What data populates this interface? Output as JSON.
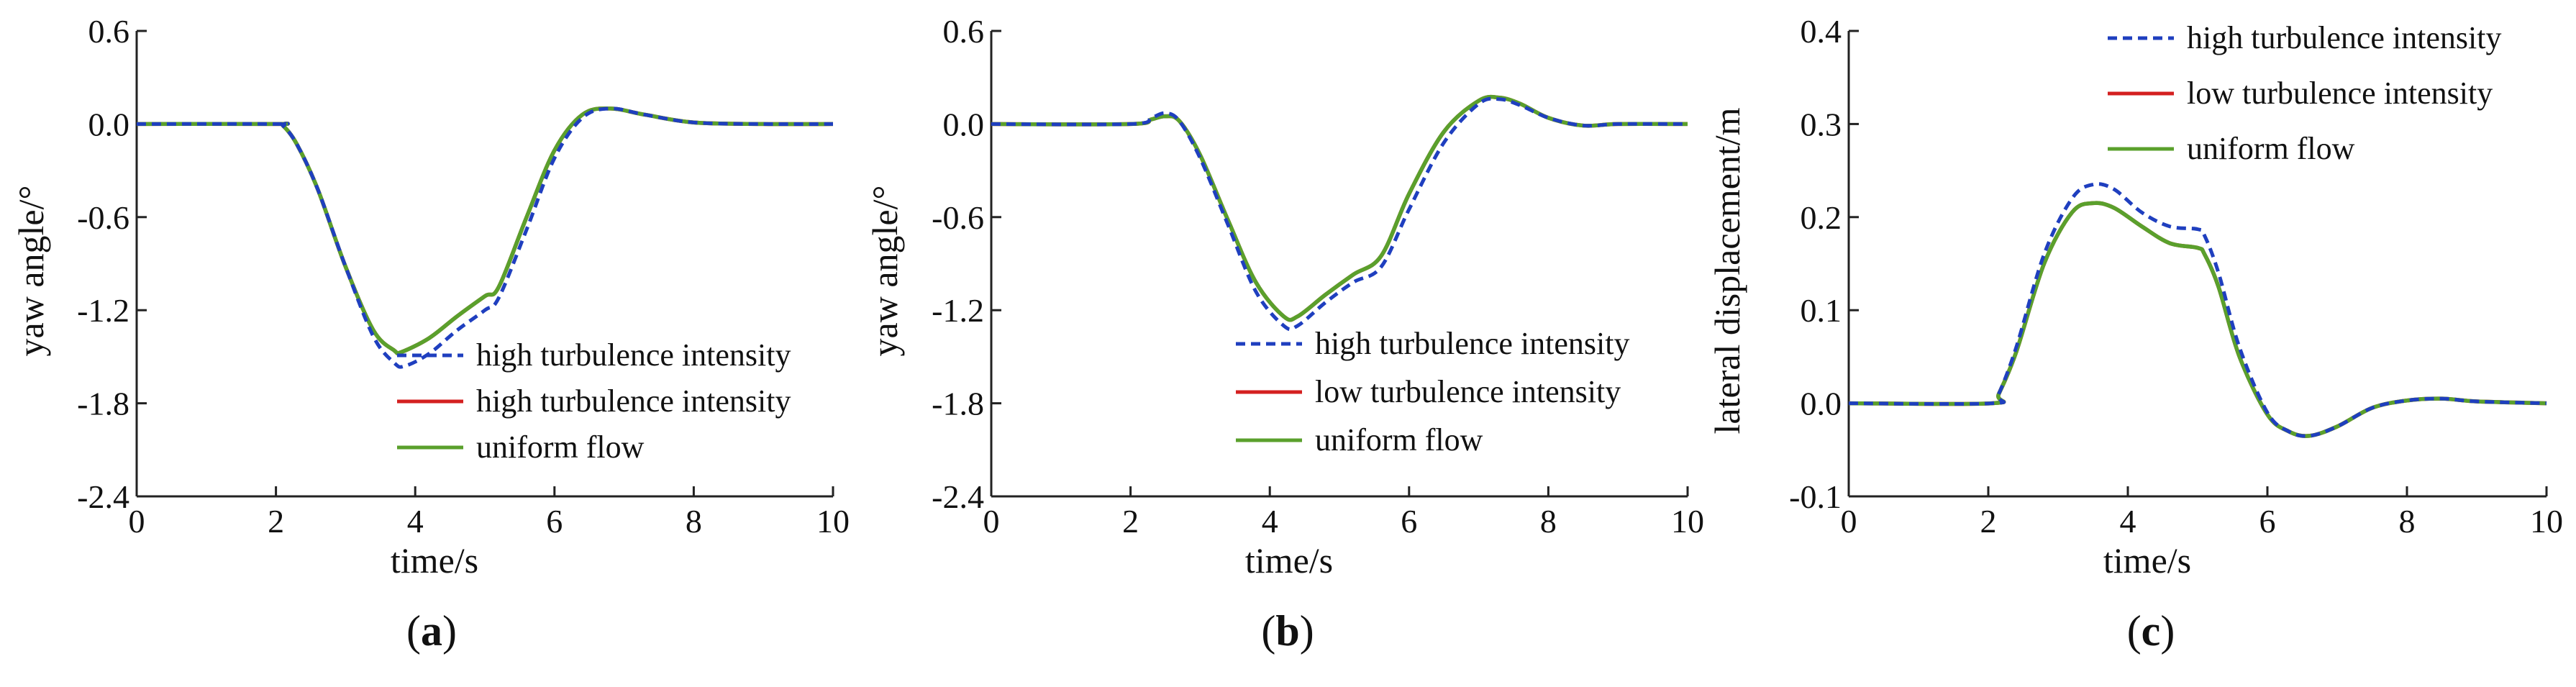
{
  "chart_data": [
    {
      "panel": "(a)",
      "panel_letter": "a",
      "type": "line",
      "title": "",
      "xlabel": "time/s",
      "ylabel": "yaw angle/°",
      "xlim": [
        0,
        10
      ],
      "ylim": [
        -2.4,
        0.6
      ],
      "xticks": [
        0,
        2,
        4,
        6,
        8,
        10
      ],
      "xtick_labels": [
        "0",
        "2",
        "4",
        "6",
        "8",
        "10"
      ],
      "yticks": [
        0.6,
        0.0,
        -0.6,
        -1.2,
        -1.8,
        -2.4
      ],
      "ytick_labels": [
        "0.6",
        "0.0",
        "-0.6",
        "-1.2",
        "-1.8",
        "-2.4"
      ],
      "legend_position": "lower-right",
      "series": [
        {
          "name": "high turbulence intensity",
          "style": "dashed",
          "color": "#1f3fbf",
          "x": [
            0,
            2,
            2.1,
            2.3,
            2.6,
            3.0,
            3.4,
            3.7,
            3.85,
            4.2,
            4.6,
            5.0,
            5.2,
            5.6,
            6.0,
            6.4,
            6.8,
            7.3,
            8.0,
            9.0,
            10
          ],
          "y": [
            0,
            0,
            -0.01,
            -0.13,
            -0.42,
            -0.92,
            -1.37,
            -1.54,
            -1.56,
            -1.48,
            -1.33,
            -1.2,
            -1.12,
            -0.68,
            -0.22,
            0.04,
            0.1,
            0.06,
            0.01,
            0.0,
            0.0
          ]
        },
        {
          "name": "high turbulence intensity",
          "style": "solid",
          "color": "#d42020",
          "x": [
            0,
            2,
            2.1,
            2.3,
            2.6,
            3.0,
            3.4,
            3.7,
            3.8,
            4.2,
            4.6,
            5.0,
            5.2,
            5.6,
            6.0,
            6.4,
            6.8,
            7.3,
            8.0,
            9.0,
            10
          ],
          "y": [
            0,
            0,
            -0.01,
            -0.13,
            -0.42,
            -0.92,
            -1.33,
            -1.46,
            -1.47,
            -1.38,
            -1.24,
            -1.11,
            -1.05,
            -0.6,
            -0.17,
            0.06,
            0.1,
            0.06,
            0.01,
            0.0,
            0.0
          ]
        },
        {
          "name": "uniform flow",
          "style": "solid",
          "color": "#5aa02c",
          "x": [
            0,
            2,
            2.1,
            2.3,
            2.6,
            3.0,
            3.4,
            3.7,
            3.8,
            4.2,
            4.6,
            5.0,
            5.2,
            5.6,
            6.0,
            6.4,
            6.8,
            7.3,
            8.0,
            9.0,
            10
          ],
          "y": [
            0,
            0,
            -0.01,
            -0.13,
            -0.42,
            -0.92,
            -1.33,
            -1.46,
            -1.47,
            -1.38,
            -1.24,
            -1.11,
            -1.05,
            -0.6,
            -0.17,
            0.06,
            0.1,
            0.06,
            0.01,
            0.0,
            0.0
          ]
        }
      ]
    },
    {
      "panel": "(b)",
      "panel_letter": "b",
      "type": "line",
      "title": "",
      "xlabel": "time/s",
      "ylabel": "yaw angle/°",
      "xlim": [
        0,
        10
      ],
      "ylim": [
        -2.4,
        0.6
      ],
      "xticks": [
        0,
        2,
        4,
        6,
        8,
        10
      ],
      "xtick_labels": [
        "0",
        "2",
        "4",
        "6",
        "8",
        "10"
      ],
      "yticks": [
        0.6,
        0.0,
        -0.6,
        -1.2,
        -1.8,
        -2.4
      ],
      "ytick_labels": [
        "0.6",
        "0.0",
        "-0.6",
        "-1.2",
        "-1.8",
        "-2.4"
      ],
      "legend_position": "lower-right",
      "series": [
        {
          "name": "high turbulence intensity",
          "style": "dashed",
          "color": "#1f3fbf",
          "x": [
            0,
            2.0,
            2.3,
            2.5,
            2.7,
            3.0,
            3.4,
            3.8,
            4.2,
            4.4,
            4.8,
            5.2,
            5.6,
            6.0,
            6.5,
            7.0,
            7.3,
            7.6,
            8.0,
            8.5,
            9.0,
            10
          ],
          "y": [
            0,
            0.0,
            0.04,
            0.07,
            0.02,
            -0.22,
            -0.65,
            -1.08,
            -1.3,
            -1.3,
            -1.15,
            -1.02,
            -0.92,
            -0.55,
            -0.12,
            0.13,
            0.16,
            0.12,
            0.04,
            -0.01,
            0.0,
            0.0
          ]
        },
        {
          "name": "low turbulence intensity",
          "style": "solid",
          "color": "#d42020",
          "x": [
            0,
            2.0,
            2.3,
            2.5,
            2.7,
            3.0,
            3.4,
            3.8,
            4.2,
            4.4,
            4.8,
            5.2,
            5.6,
            6.0,
            6.5,
            7.0,
            7.3,
            7.6,
            8.0,
            8.5,
            9.0,
            10
          ],
          "y": [
            0,
            0.0,
            0.03,
            0.05,
            0.02,
            -0.2,
            -0.62,
            -1.02,
            -1.24,
            -1.24,
            -1.1,
            -0.97,
            -0.85,
            -0.45,
            -0.05,
            0.15,
            0.17,
            0.13,
            0.04,
            -0.01,
            0.0,
            0.0
          ]
        },
        {
          "name": "uniform flow",
          "style": "solid",
          "color": "#5aa02c",
          "x": [
            0,
            2.0,
            2.3,
            2.5,
            2.7,
            3.0,
            3.4,
            3.8,
            4.2,
            4.4,
            4.8,
            5.2,
            5.6,
            6.0,
            6.5,
            7.0,
            7.3,
            7.6,
            8.0,
            8.5,
            9.0,
            10
          ],
          "y": [
            0,
            0.0,
            0.03,
            0.05,
            0.02,
            -0.2,
            -0.62,
            -1.02,
            -1.24,
            -1.24,
            -1.1,
            -0.97,
            -0.85,
            -0.45,
            -0.05,
            0.15,
            0.17,
            0.13,
            0.04,
            -0.01,
            0.0,
            0.0
          ]
        }
      ]
    },
    {
      "panel": "(c)",
      "panel_letter": "c",
      "type": "line",
      "title": "",
      "xlabel": "time/s",
      "ylabel": "lateral displacement/m",
      "xlim": [
        0,
        10
      ],
      "ylim": [
        -0.1,
        0.4
      ],
      "xticks": [
        0,
        2,
        4,
        6,
        8,
        10
      ],
      "xtick_labels": [
        "0",
        "2",
        "4",
        "6",
        "8",
        "10"
      ],
      "yticks": [
        0.4,
        0.3,
        0.2,
        0.1,
        0.0,
        -0.1
      ],
      "ytick_labels": [
        "0.4",
        "0.3",
        "0.2",
        "0.1",
        "0.0",
        "-0.1"
      ],
      "legend_position": "top-right",
      "series": [
        {
          "name": "high turbulence intensity",
          "style": "dashed",
          "color": "#1f3fbf",
          "x": [
            0,
            2.05,
            2.15,
            2.4,
            2.8,
            3.2,
            3.5,
            3.8,
            4.2,
            4.6,
            5.0,
            5.1,
            5.3,
            5.6,
            6.0,
            6.3,
            6.6,
            7.0,
            7.5,
            8.0,
            8.5,
            9.0,
            10
          ],
          "y": [
            0,
            0.0,
            0.01,
            0.06,
            0.16,
            0.22,
            0.235,
            0.23,
            0.205,
            0.19,
            0.187,
            0.18,
            0.14,
            0.06,
            -0.01,
            -0.03,
            -0.035,
            -0.025,
            -0.005,
            0.003,
            0.005,
            0.002,
            0.0
          ]
        },
        {
          "name": "low turbulence intensity",
          "style": "solid",
          "color": "#d42020",
          "x": [
            0,
            2.05,
            2.15,
            2.4,
            2.8,
            3.2,
            3.5,
            3.8,
            4.2,
            4.6,
            5.0,
            5.1,
            5.3,
            5.6,
            6.0,
            6.3,
            6.6,
            7.0,
            7.5,
            8.0,
            8.5,
            9.0,
            10
          ],
          "y": [
            0,
            0.0,
            0.01,
            0.055,
            0.15,
            0.205,
            0.215,
            0.21,
            0.19,
            0.172,
            0.167,
            0.16,
            0.125,
            0.05,
            -0.012,
            -0.03,
            -0.035,
            -0.025,
            -0.005,
            0.003,
            0.005,
            0.002,
            0.0
          ]
        },
        {
          "name": "uniform flow",
          "style": "solid",
          "color": "#5aa02c",
          "x": [
            0,
            2.05,
            2.15,
            2.4,
            2.8,
            3.2,
            3.5,
            3.8,
            4.2,
            4.6,
            5.0,
            5.1,
            5.3,
            5.6,
            6.0,
            6.3,
            6.6,
            7.0,
            7.5,
            8.0,
            8.5,
            9.0,
            10
          ],
          "y": [
            0,
            0.0,
            0.01,
            0.055,
            0.15,
            0.205,
            0.215,
            0.21,
            0.19,
            0.172,
            0.167,
            0.16,
            0.125,
            0.05,
            -0.012,
            -0.03,
            -0.035,
            -0.025,
            -0.005,
            0.003,
            0.005,
            0.002,
            0.0
          ]
        }
      ]
    }
  ]
}
